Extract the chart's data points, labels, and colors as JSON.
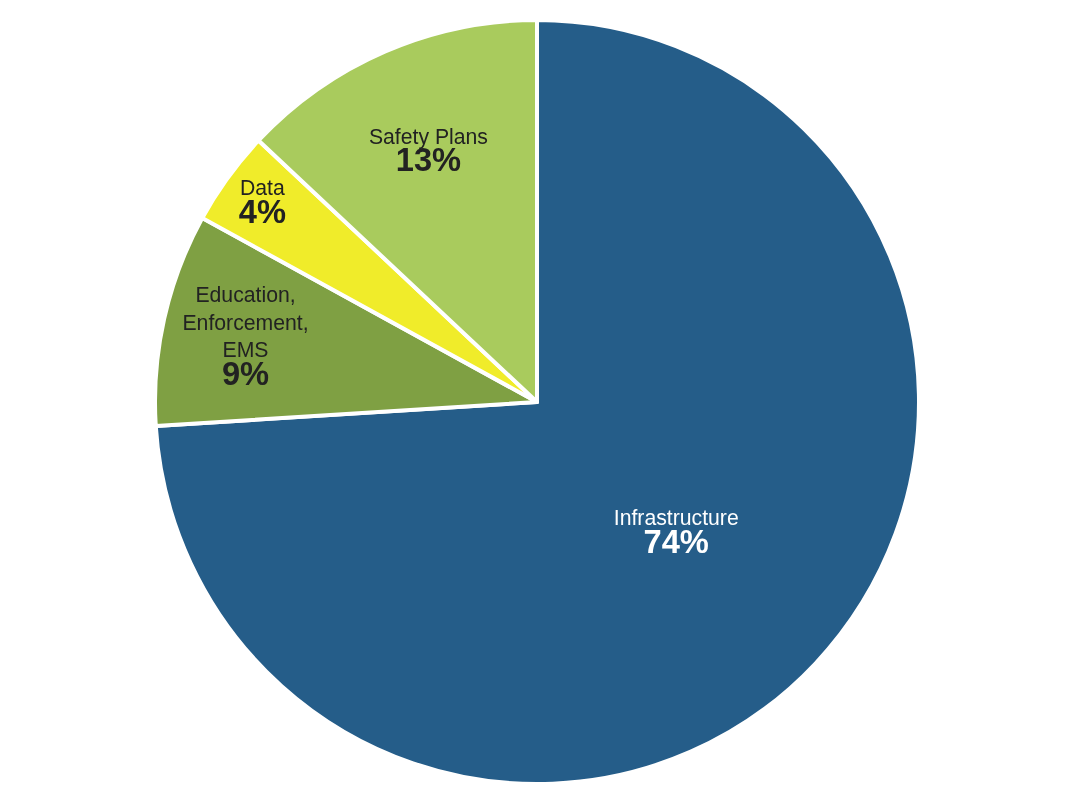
{
  "chart_data": {
    "type": "pie",
    "categories": [
      "Infrastructure",
      "Education, Enforcement, EMS",
      "Data",
      "Safety Plans"
    ],
    "values": [
      74,
      9,
      4,
      13
    ],
    "colors": [
      "#255d89",
      "#7fa043",
      "#f0ec2a",
      "#a9cb5d"
    ],
    "value_labels": [
      "74%",
      "9%",
      "4%",
      "13%"
    ],
    "legend": false
  }
}
